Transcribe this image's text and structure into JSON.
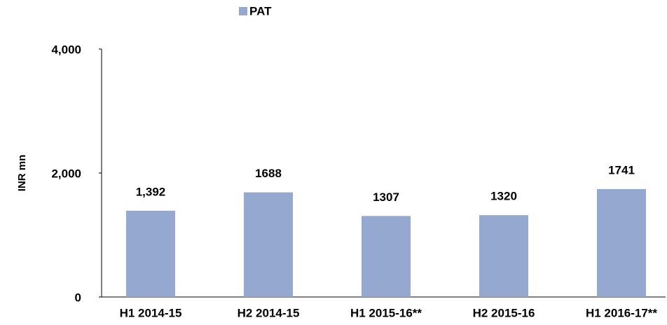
{
  "chart_data": {
    "type": "bar",
    "legend": "PAT",
    "y_label": "INR mn",
    "categories": [
      "H1 2014-15",
      "H2 2014-15",
      "H1 2015-16**",
      "H2 2015-16",
      "H1 2016-17**"
    ],
    "values": [
      1392,
      1688,
      1307,
      1320,
      1741
    ],
    "value_labels": [
      "1,392",
      "1688",
      "1307",
      "1320",
      "1741"
    ],
    "color": "#95a9d0",
    "ylim": [
      0,
      4000
    ],
    "yticks": [
      0,
      {
        "value": 2000,
        "label": "2,000"
      },
      {
        "value": 4000,
        "label": "4,000"
      }
    ],
    "grid": false
  }
}
